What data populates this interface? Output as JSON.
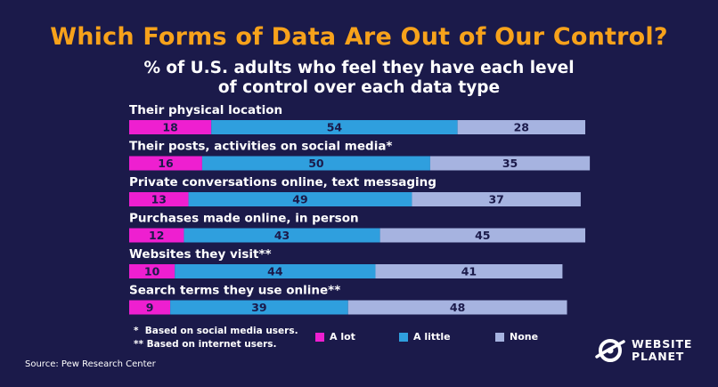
{
  "title": "Which Forms of Data Are Out of Our Control?",
  "subtitle_lines": [
    "% of U.S. adults who feel they have each level",
    "of control over each data type"
  ],
  "colors": {
    "background": "#1b1a4a",
    "title": "#f7a21b",
    "a_lot": "#ee1fd0",
    "a_little": "#2f9fde",
    "none": "#a6b3e0"
  },
  "chart_data": {
    "type": "bar",
    "orientation": "horizontal",
    "stacked": true,
    "title": "Which Forms of Data Are Out of Our Control?",
    "subtitle": "% of U.S. adults who feel they have each level of control over each data type",
    "categories": [
      "Their physical location",
      "Their posts, activities on social media*",
      "Private conversations online, text messaging",
      "Purchases made online, in person",
      "Websites they visit**",
      "Search terms they use online**"
    ],
    "series": [
      {
        "name": "A lot",
        "values": [
          18,
          16,
          13,
          12,
          10,
          9
        ]
      },
      {
        "name": "A little",
        "values": [
          54,
          50,
          49,
          43,
          44,
          39
        ]
      },
      {
        "name": "None",
        "values": [
          28,
          35,
          37,
          45,
          41,
          48
        ]
      }
    ],
    "xlim": [
      0,
      100
    ],
    "grid": false,
    "legend_placement": "bottom"
  },
  "footnotes": [
    "*  Based on social media users.",
    "** Based on internet users."
  ],
  "legend": [
    "A lot",
    "A little",
    "None"
  ],
  "source": "Source: Pew Research Center",
  "logo": {
    "line1": "WEBSITE",
    "line2": "PLANET",
    "icon": "planet-logo-icon"
  }
}
